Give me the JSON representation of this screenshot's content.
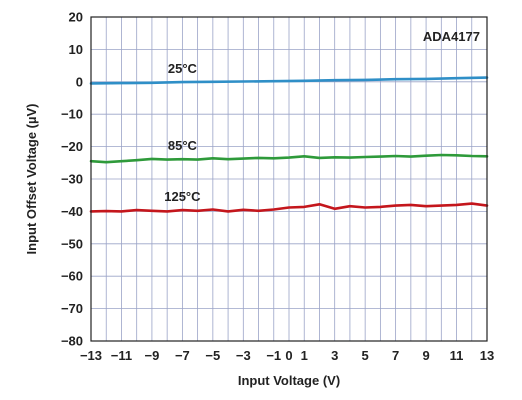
{
  "chart_data": {
    "type": "line",
    "title": "",
    "annotation": "ADA4177",
    "xlabel": "Input Voltage (V)",
    "ylabel": "Input Offset Voltage (µV)",
    "xlim": [
      -13,
      13
    ],
    "ylim": [
      -80,
      20
    ],
    "x_ticks": [
      -13,
      -11,
      -9,
      -7,
      -5,
      -3,
      -1,
      0,
      1,
      3,
      5,
      7,
      9,
      11,
      13
    ],
    "y_ticks": [
      20,
      10,
      0,
      -10,
      -20,
      -30,
      -40,
      -50,
      -60,
      -70,
      -80
    ],
    "grid": true,
    "series": [
      {
        "name": "25°C",
        "color": "#2f8fc7",
        "x": [
          -13,
          -11,
          -9,
          -7,
          -5,
          -3,
          -1,
          1,
          3,
          5,
          7,
          9,
          11,
          13
        ],
        "y": [
          -0.5,
          -0.4,
          -0.3,
          -0.1,
          0.0,
          0.1,
          0.2,
          0.3,
          0.5,
          0.6,
          0.8,
          0.9,
          1.1,
          1.3
        ]
      },
      {
        "name": "85°C",
        "color": "#2e9a3a",
        "x": [
          -13,
          -12,
          -11,
          -10,
          -9,
          -8,
          -7,
          -6,
          -5,
          -4,
          -3,
          -2,
          -1,
          0,
          1,
          2,
          3,
          4,
          5,
          6,
          7,
          8,
          9,
          10,
          11,
          12,
          13
        ],
        "y": [
          -24.5,
          -24.8,
          -24.5,
          -24.2,
          -23.8,
          -24.0,
          -23.9,
          -24.0,
          -23.6,
          -23.9,
          -23.7,
          -23.5,
          -23.6,
          -23.4,
          -23.0,
          -23.5,
          -23.3,
          -23.4,
          -23.2,
          -23.1,
          -22.9,
          -23.1,
          -22.8,
          -22.6,
          -22.7,
          -22.9,
          -23.0
        ]
      },
      {
        "name": "125°C",
        "color": "#c4161c",
        "x": [
          -13,
          -12,
          -11,
          -10,
          -9,
          -8,
          -7,
          -6,
          -5,
          -4,
          -3,
          -2,
          -1,
          0,
          1,
          2,
          3,
          4,
          5,
          6,
          7,
          8,
          9,
          10,
          11,
          12,
          13
        ],
        "y": [
          -40.0,
          -39.9,
          -40.0,
          -39.6,
          -39.8,
          -40.0,
          -39.6,
          -39.8,
          -39.4,
          -40.0,
          -39.5,
          -39.8,
          -39.4,
          -38.8,
          -38.6,
          -37.8,
          -39.2,
          -38.4,
          -38.8,
          -38.6,
          -38.2,
          -38.0,
          -38.4,
          -38.2,
          -38.0,
          -37.6,
          -38.2
        ]
      }
    ]
  }
}
